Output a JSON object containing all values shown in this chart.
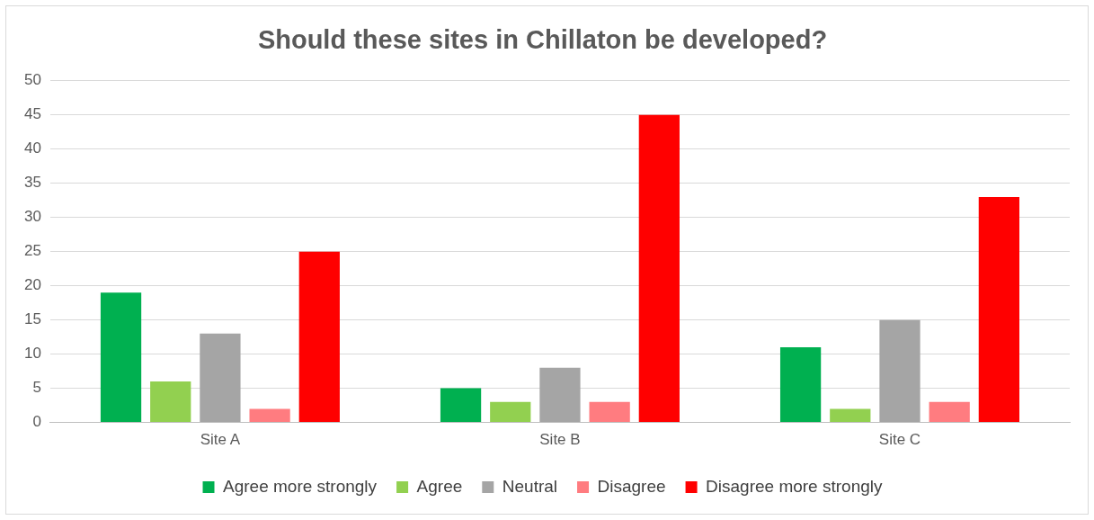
{
  "chart_data": {
    "type": "bar",
    "title": "Should these sites in Chillaton be developed?",
    "categories": [
      "Site A",
      "Site B",
      "Site C"
    ],
    "series": [
      {
        "name": "Agree more strongly",
        "color": "#00b050",
        "values": [
          19,
          5,
          11
        ]
      },
      {
        "name": "Agree",
        "color": "#92d050",
        "values": [
          6,
          3,
          2
        ]
      },
      {
        "name": "Neutral",
        "color": "#a5a5a5",
        "values": [
          13,
          8,
          15
        ]
      },
      {
        "name": "Disagree",
        "color": "#ff7c80",
        "values": [
          2,
          3,
          3
        ]
      },
      {
        "name": "Disagree more strongly",
        "color": "#ff0000",
        "values": [
          25,
          45,
          33
        ]
      }
    ],
    "ylim": [
      0,
      50
    ],
    "yticks": [
      0,
      5,
      10,
      15,
      20,
      25,
      30,
      35,
      40,
      45,
      50
    ],
    "grid": "y",
    "legend": "bottom"
  }
}
